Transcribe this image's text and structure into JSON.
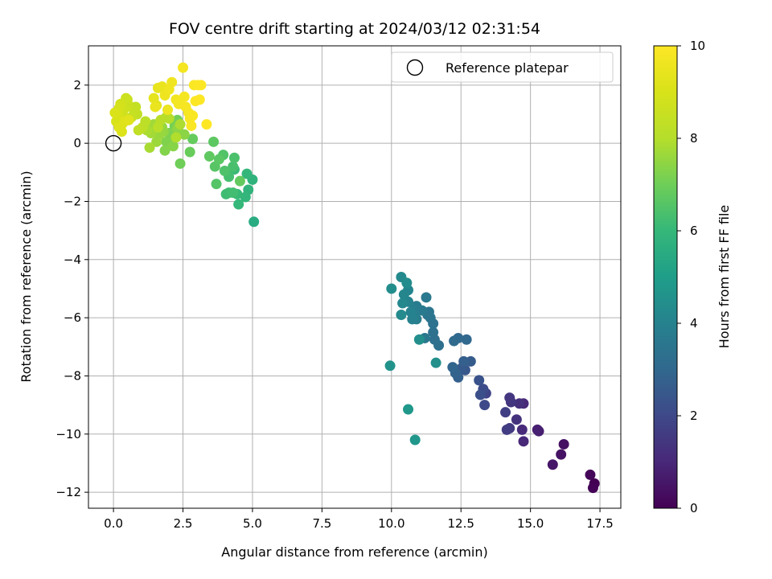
{
  "chart_data": {
    "type": "scatter",
    "title": "FOV centre drift starting at 2024/03/12 02:31:54",
    "xlabel": "Angular distance from reference (arcmin)",
    "ylabel": "Rotation from reference (arcmin)",
    "xlim": [
      -0.9,
      18.25
    ],
    "ylim": [
      -12.55,
      3.35
    ],
    "xticks": [
      0.0,
      2.5,
      5.0,
      7.5,
      10.0,
      12.5,
      15.0,
      17.5
    ],
    "xtick_labels": [
      "0.0",
      "2.5",
      "5.0",
      "7.5",
      "10.0",
      "12.5",
      "15.0",
      "17.5"
    ],
    "yticks": [
      2,
      0,
      -2,
      -4,
      -6,
      -8,
      -10,
      -12
    ],
    "ytick_labels": [
      "2",
      "0",
      "−2",
      "−4",
      "−6",
      "−8",
      "−10",
      "−12"
    ],
    "grid": true,
    "legend": {
      "position": "top-right",
      "label": "Reference platepar"
    },
    "reference_point": {
      "x": 0,
      "y": 0
    },
    "colorbar": {
      "label": "Hours from first FF file",
      "range": [
        0,
        10
      ],
      "ticks": [
        0,
        2,
        4,
        6,
        8,
        10
      ],
      "colormap": "viridis"
    },
    "points": [
      [
        17.3,
        -11.7,
        0.0
      ],
      [
        17.25,
        -11.85,
        0.05
      ],
      [
        17.15,
        -11.4,
        0.15
      ],
      [
        16.2,
        -10.35,
        0.4
      ],
      [
        16.1,
        -10.7,
        0.45
      ],
      [
        15.8,
        -11.05,
        0.55
      ],
      [
        15.3,
        -9.9,
        0.75
      ],
      [
        15.25,
        -9.85,
        0.8
      ],
      [
        14.75,
        -10.25,
        1.0
      ],
      [
        14.75,
        -8.95,
        1.05
      ],
      [
        14.7,
        -9.85,
        1.1
      ],
      [
        14.6,
        -8.95,
        1.2
      ],
      [
        14.5,
        -9.5,
        1.3
      ],
      [
        14.3,
        -8.9,
        1.4
      ],
      [
        14.25,
        -8.75,
        1.45
      ],
      [
        14.25,
        -9.8,
        1.5
      ],
      [
        14.15,
        -9.85,
        1.6
      ],
      [
        14.1,
        -9.25,
        1.7
      ],
      [
        13.4,
        -8.6,
        1.85
      ],
      [
        13.35,
        -9.0,
        2.0
      ],
      [
        13.3,
        -8.45,
        2.1
      ],
      [
        13.2,
        -8.65,
        2.2
      ],
      [
        13.15,
        -8.15,
        2.3
      ],
      [
        12.65,
        -7.8,
        2.45
      ],
      [
        12.5,
        -7.75,
        2.55
      ],
      [
        12.85,
        -7.5,
        2.6
      ],
      [
        12.6,
        -7.5,
        2.7
      ],
      [
        12.4,
        -8.05,
        2.75
      ],
      [
        12.3,
        -7.9,
        2.85
      ],
      [
        12.2,
        -7.7,
        2.9
      ],
      [
        12.7,
        -6.75,
        3.0
      ],
      [
        12.4,
        -6.7,
        3.05
      ],
      [
        12.25,
        -6.8,
        3.1
      ],
      [
        11.7,
        -6.95,
        3.25
      ],
      [
        11.55,
        -6.75,
        3.3
      ],
      [
        11.5,
        -6.5,
        3.35
      ],
      [
        11.5,
        -6.2,
        3.4
      ],
      [
        11.4,
        -6.0,
        3.45
      ],
      [
        11.35,
        -5.8,
        3.5
      ],
      [
        11.3,
        -5.9,
        3.55
      ],
      [
        11.2,
        -6.7,
        3.6
      ],
      [
        11.25,
        -5.3,
        3.65
      ],
      [
        11.1,
        -5.75,
        3.7
      ],
      [
        10.9,
        -5.6,
        3.75
      ],
      [
        10.8,
        -5.7,
        3.8
      ],
      [
        10.85,
        -5.9,
        3.85
      ],
      [
        10.9,
        -6.05,
        3.9
      ],
      [
        10.75,
        -6.05,
        3.95
      ],
      [
        10.7,
        -5.8,
        4.0
      ],
      [
        10.6,
        -5.45,
        4.05
      ],
      [
        10.6,
        -5.05,
        4.1
      ],
      [
        10.45,
        -5.2,
        4.15
      ],
      [
        10.4,
        -5.5,
        4.2
      ],
      [
        10.35,
        -4.6,
        4.25
      ],
      [
        10.35,
        -5.9,
        4.3
      ],
      [
        10.55,
        -4.8,
        4.35
      ],
      [
        10.0,
        -5.0,
        4.4
      ],
      [
        11.0,
        -6.75,
        4.45
      ],
      [
        11.6,
        -7.55,
        4.5
      ],
      [
        9.95,
        -7.65,
        4.6
      ],
      [
        10.85,
        -10.2,
        4.7
      ],
      [
        10.6,
        -9.15,
        4.8
      ],
      [
        5.05,
        -2.7,
        5.5
      ],
      [
        5.0,
        -1.25,
        5.8
      ],
      [
        4.85,
        -1.6,
        5.85
      ],
      [
        4.75,
        -1.85,
        5.9
      ],
      [
        4.8,
        -1.05,
        5.95
      ],
      [
        4.5,
        -2.1,
        6.0
      ],
      [
        4.45,
        -1.75,
        6.05
      ],
      [
        4.35,
        -0.9,
        6.1
      ],
      [
        4.15,
        -1.7,
        6.15
      ],
      [
        4.05,
        -1.75,
        6.2
      ],
      [
        4.3,
        -1.7,
        6.25
      ],
      [
        4.15,
        -1.15,
        6.3
      ],
      [
        4.3,
        -0.8,
        6.35
      ],
      [
        4.35,
        -0.5,
        6.4
      ],
      [
        4.0,
        -0.95,
        6.45
      ],
      [
        3.95,
        -0.4,
        6.5
      ],
      [
        3.7,
        -1.4,
        6.55
      ],
      [
        3.65,
        -0.8,
        6.6
      ],
      [
        3.8,
        -0.55,
        6.65
      ],
      [
        3.6,
        0.05,
        6.7
      ],
      [
        3.45,
        -0.45,
        6.75
      ],
      [
        4.55,
        -1.3,
        6.8
      ],
      [
        2.85,
        0.15,
        6.85
      ],
      [
        2.75,
        -0.3,
        6.9
      ],
      [
        2.4,
        -0.7,
        7.0
      ],
      [
        2.3,
        0.8,
        7.05
      ],
      [
        2.2,
        0.6,
        7.1
      ],
      [
        2.1,
        0.2,
        7.15
      ],
      [
        2.0,
        0.35,
        7.2
      ],
      [
        1.9,
        0.05,
        7.25
      ],
      [
        1.85,
        -0.25,
        7.3
      ],
      [
        2.15,
        -0.1,
        7.35
      ],
      [
        2.55,
        0.3,
        7.4
      ],
      [
        2.3,
        0.5,
        7.45
      ],
      [
        1.8,
        0.4,
        7.5
      ],
      [
        1.75,
        0.55,
        7.55
      ],
      [
        1.65,
        0.3,
        7.6
      ],
      [
        1.55,
        0.05,
        7.65
      ],
      [
        1.45,
        0.65,
        7.7
      ],
      [
        1.35,
        0.35,
        7.75
      ],
      [
        1.3,
        -0.15,
        7.8
      ],
      [
        1.2,
        0.45,
        7.85
      ],
      [
        2.4,
        0.65,
        7.9
      ],
      [
        2.25,
        0.2,
        7.95
      ],
      [
        2.0,
        0.85,
        8.0
      ],
      [
        1.9,
        0.9,
        8.05
      ],
      [
        1.7,
        0.8,
        8.1
      ],
      [
        1.6,
        0.55,
        8.15
      ],
      [
        1.15,
        0.75,
        8.2
      ],
      [
        1.05,
        0.55,
        8.25
      ],
      [
        0.9,
        0.45,
        8.3
      ],
      [
        0.85,
        1.0,
        8.35
      ],
      [
        0.8,
        1.25,
        8.4
      ],
      [
        0.75,
        1.1,
        8.45
      ],
      [
        0.65,
        0.9,
        8.5
      ],
      [
        0.55,
        1.3,
        8.55
      ],
      [
        0.5,
        1.5,
        8.6
      ],
      [
        0.45,
        1.55,
        8.65
      ],
      [
        0.4,
        1.2,
        8.7
      ],
      [
        0.35,
        0.95,
        8.75
      ],
      [
        0.3,
        0.65,
        8.8
      ],
      [
        0.25,
        1.35,
        8.85
      ],
      [
        0.2,
        1.2,
        8.9
      ],
      [
        0.15,
        1.0,
        8.95
      ],
      [
        0.1,
        0.75,
        9.0
      ],
      [
        0.05,
        1.05,
        9.05
      ],
      [
        0.3,
        0.4,
        9.1
      ],
      [
        0.2,
        0.55,
        9.15
      ],
      [
        0.4,
        0.75,
        9.2
      ],
      [
        0.55,
        0.8,
        9.25
      ],
      [
        1.55,
        1.3,
        9.3
      ],
      [
        1.45,
        1.55,
        9.35
      ],
      [
        1.6,
        1.9,
        9.4
      ],
      [
        1.75,
        1.95,
        9.45
      ],
      [
        1.5,
        1.25,
        9.5
      ],
      [
        1.95,
        1.15,
        9.55
      ],
      [
        1.85,
        1.65,
        9.6
      ],
      [
        2.0,
        1.85,
        9.62
      ],
      [
        2.1,
        2.1,
        9.65
      ],
      [
        2.25,
        1.5,
        9.7
      ],
      [
        2.35,
        1.35,
        9.72
      ],
      [
        2.5,
        2.6,
        9.75
      ],
      [
        2.55,
        1.6,
        9.78
      ],
      [
        2.6,
        1.25,
        9.8
      ],
      [
        2.7,
        1.05,
        9.82
      ],
      [
        2.75,
        0.85,
        9.85
      ],
      [
        2.8,
        0.6,
        9.88
      ],
      [
        2.85,
        0.95,
        9.9
      ],
      [
        2.9,
        2.0,
        9.92
      ],
      [
        3.05,
        2.0,
        9.95
      ],
      [
        3.15,
        2.0,
        9.97
      ],
      [
        3.1,
        1.5,
        9.98
      ],
      [
        2.95,
        1.45,
        9.99
      ],
      [
        3.35,
        0.65,
        10.0
      ]
    ]
  }
}
